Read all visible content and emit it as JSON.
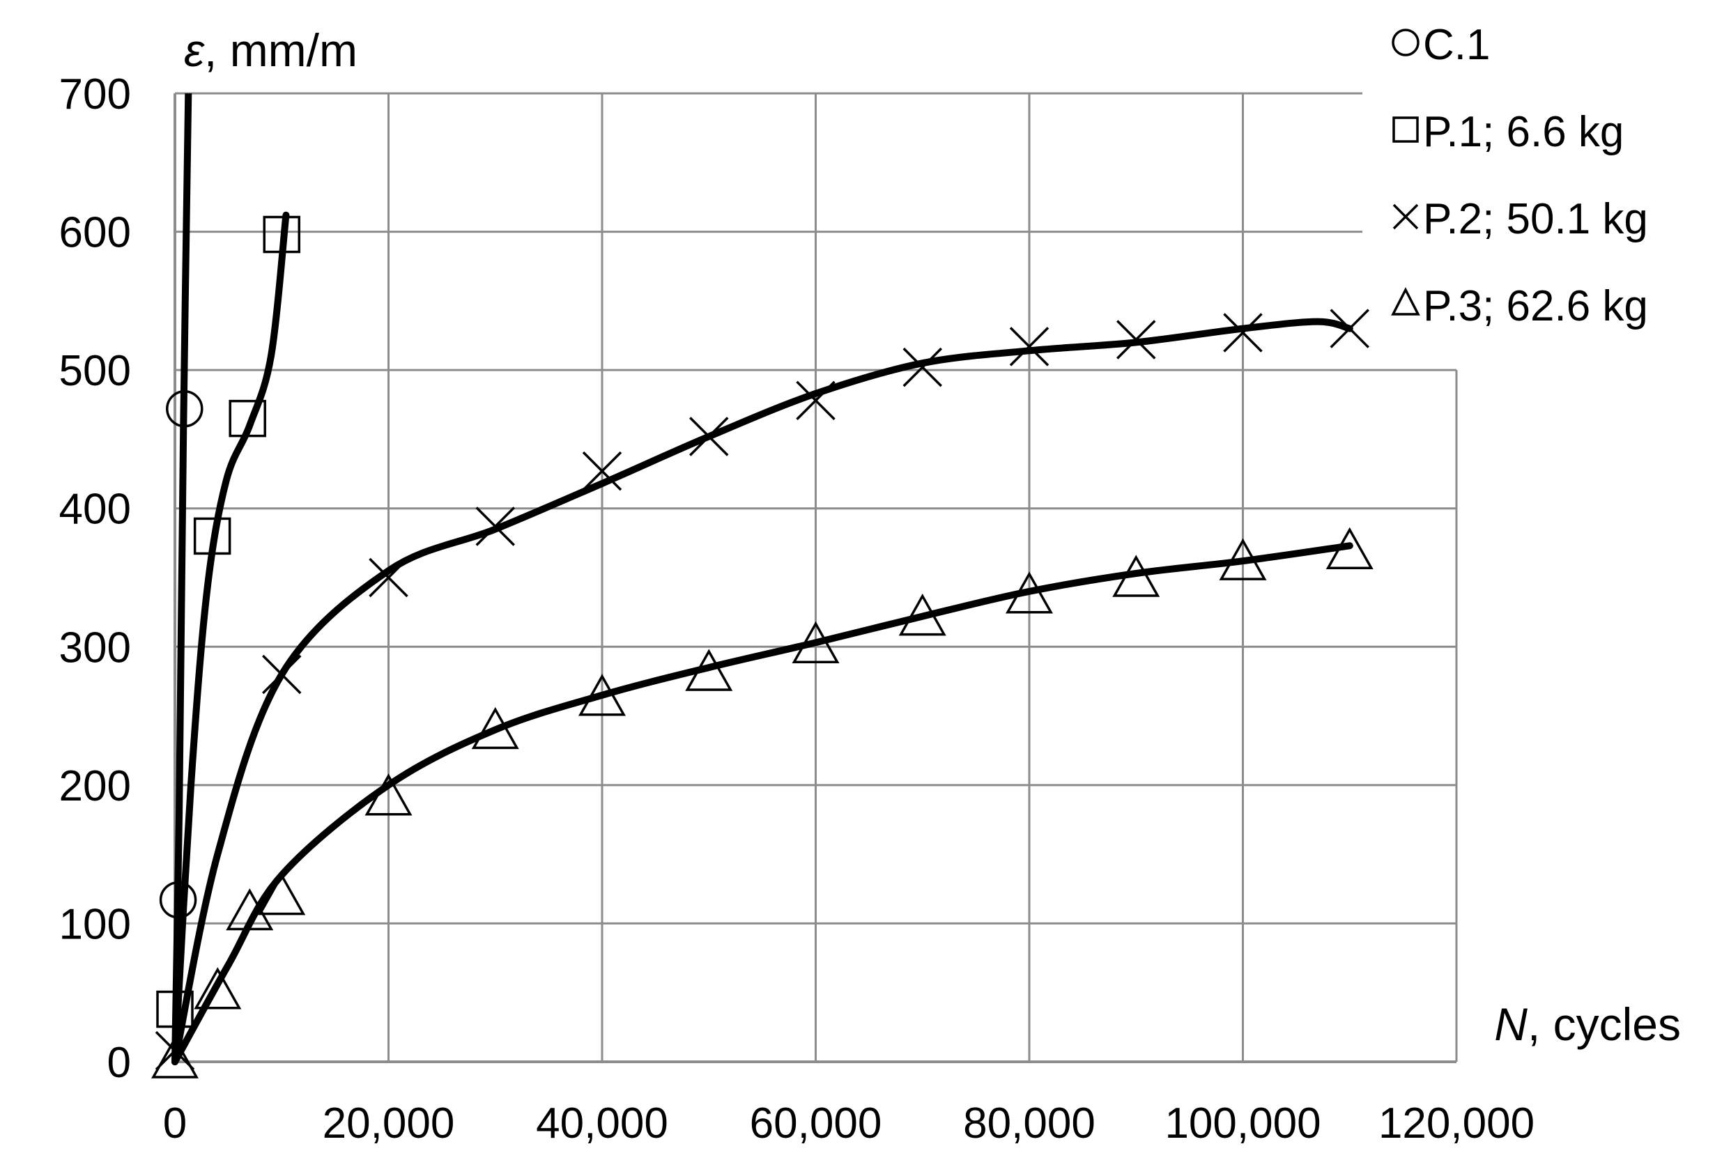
{
  "chart_data": {
    "type": "line",
    "xlabel_var": "N",
    "xlabel_unit": ", cycles",
    "ylabel_var": "ε",
    "ylabel_unit": ", mm/m",
    "xlim": [
      0,
      120000
    ],
    "ylim": [
      0,
      700
    ],
    "x_ticks": [
      0,
      20000,
      40000,
      60000,
      80000,
      100000,
      120000
    ],
    "x_tick_labels": [
      "0",
      "20,000",
      "40,000",
      "60,000",
      "80,000",
      "100,000",
      "120,000"
    ],
    "y_ticks": [
      0,
      100,
      200,
      300,
      400,
      500,
      600,
      700
    ],
    "y_tick_labels": [
      "0",
      "100",
      "200",
      "300",
      "400",
      "500",
      "600",
      "700"
    ],
    "grid": true,
    "legend_position": "top-right",
    "series": [
      {
        "name": "C.1",
        "marker": "circle",
        "points": [
          [
            300,
            117
          ],
          [
            900,
            472
          ]
        ],
        "trend": [
          [
            0,
            0
          ],
          [
            400,
            180
          ],
          [
            800,
            460
          ],
          [
            1300,
            720
          ]
        ]
      },
      {
        "name": "P.1; 6.6 kg",
        "marker": "square",
        "points": [
          [
            0,
            38
          ],
          [
            3500,
            380
          ],
          [
            6800,
            465
          ],
          [
            10000,
            598
          ]
        ],
        "trend": [
          [
            0,
            0
          ],
          [
            1500,
            200
          ],
          [
            3000,
            340
          ],
          [
            4800,
            420
          ],
          [
            7000,
            460
          ],
          [
            9000,
            510
          ],
          [
            10400,
            612
          ]
        ]
      },
      {
        "name": "P.2; 50.1 kg",
        "marker": "x",
        "points": [
          [
            0,
            8
          ],
          [
            10000,
            280
          ],
          [
            20000,
            350
          ],
          [
            30000,
            387
          ],
          [
            40000,
            427
          ],
          [
            50000,
            452
          ],
          [
            60000,
            478
          ],
          [
            70000,
            502
          ],
          [
            80000,
            517
          ],
          [
            90000,
            522
          ],
          [
            100000,
            527
          ],
          [
            110000,
            530
          ]
        ],
        "trend": [
          [
            0,
            0
          ],
          [
            4000,
            150
          ],
          [
            10000,
            280
          ],
          [
            20000,
            355
          ],
          [
            30000,
            385
          ],
          [
            40000,
            418
          ],
          [
            50000,
            452
          ],
          [
            60000,
            483
          ],
          [
            70000,
            505
          ],
          [
            80000,
            514
          ],
          [
            90000,
            520
          ],
          [
            100000,
            530
          ],
          [
            107000,
            535
          ],
          [
            110000,
            530
          ]
        ]
      },
      {
        "name": "P.3; 62.6 kg",
        "marker": "triangle",
        "points": [
          [
            0,
            0
          ],
          [
            4000,
            50
          ],
          [
            7000,
            107
          ],
          [
            10000,
            118
          ],
          [
            20000,
            190
          ],
          [
            30000,
            238
          ],
          [
            40000,
            262
          ],
          [
            50000,
            280
          ],
          [
            60000,
            300
          ],
          [
            70000,
            320
          ],
          [
            80000,
            336
          ],
          [
            90000,
            348
          ],
          [
            100000,
            360
          ],
          [
            110000,
            368
          ]
        ],
        "trend": [
          [
            0,
            0
          ],
          [
            5000,
            70
          ],
          [
            10000,
            135
          ],
          [
            20000,
            200
          ],
          [
            30000,
            240
          ],
          [
            40000,
            265
          ],
          [
            50000,
            285
          ],
          [
            60000,
            303
          ],
          [
            70000,
            322
          ],
          [
            80000,
            340
          ],
          [
            90000,
            353
          ],
          [
            100000,
            362
          ],
          [
            110000,
            373
          ]
        ]
      }
    ]
  }
}
